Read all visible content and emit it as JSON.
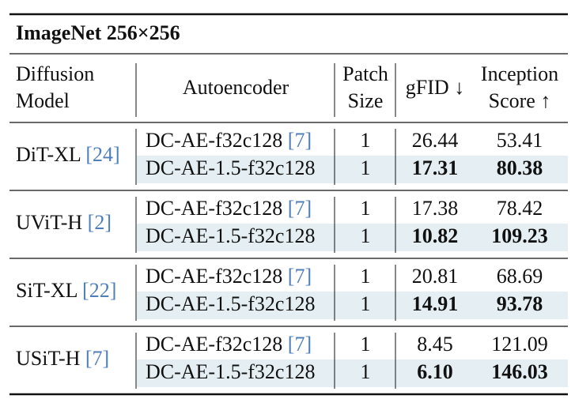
{
  "title": "ImageNet 256×256",
  "header": {
    "model": [
      "Diffusion",
      "Model"
    ],
    "autoencoder": "Autoencoder",
    "patch": [
      "Patch",
      "Size"
    ],
    "gfid": "gFID ↓",
    "is": [
      "Inception",
      "Score ↑"
    ]
  },
  "groups": [
    {
      "model": "DiT-XL",
      "cite": "[24]",
      "rows": [
        {
          "autoencoder": "DC-AE-f32c128",
          "cite": "[7]",
          "patch": "1",
          "gfid": "26.44",
          "is": "53.41"
        },
        {
          "autoencoder": "DC-AE-1.5-f32c128",
          "patch": "1",
          "gfid": "17.31",
          "is": "80.38"
        }
      ]
    },
    {
      "model": "UViT-H",
      "cite": "[2]",
      "rows": [
        {
          "autoencoder": "DC-AE-f32c128",
          "cite": "[7]",
          "patch": "1",
          "gfid": "17.38",
          "is": "78.42"
        },
        {
          "autoencoder": "DC-AE-1.5-f32c128",
          "patch": "1",
          "gfid": "10.82",
          "is": "109.23"
        }
      ]
    },
    {
      "model": "SiT-XL",
      "cite": "[22]",
      "rows": [
        {
          "autoencoder": "DC-AE-f32c128",
          "cite": "[7]",
          "patch": "1",
          "gfid": "20.81",
          "is": "68.69"
        },
        {
          "autoencoder": "DC-AE-1.5-f32c128",
          "patch": "1",
          "gfid": "14.91",
          "is": "93.78"
        }
      ]
    },
    {
      "model": "USiT-H",
      "cite": "[7]",
      "rows": [
        {
          "autoencoder": "DC-AE-f32c128",
          "cite": "[7]",
          "patch": "1",
          "gfid": "8.45",
          "is": "121.09"
        },
        {
          "autoencoder": "DC-AE-1.5-f32c128",
          "patch": "1",
          "gfid": "6.10",
          "is": "146.03"
        }
      ]
    }
  ]
}
